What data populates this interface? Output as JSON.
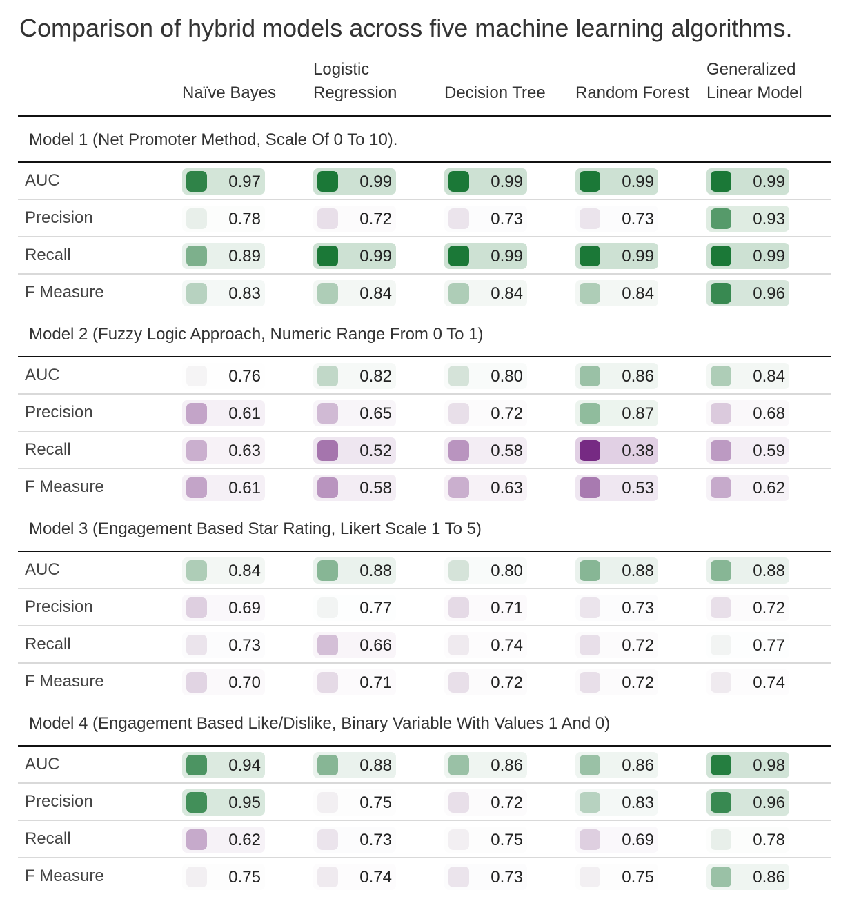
{
  "chart_data": {
    "type": "table",
    "title": "Comparison of hybrid models across five machine learning algorithms.",
    "columns": [
      {
        "line1": "",
        "line2": "Naïve Bayes"
      },
      {
        "line1": "Logistic",
        "line2": "Regression"
      },
      {
        "line1": "",
        "line2": "Decision Tree"
      },
      {
        "line1": "",
        "line2": "Random Forest"
      },
      {
        "line1": "Generalized",
        "line2": "Linear Model"
      }
    ],
    "color_scale": {
      "low": "#762a83",
      "mid": "#f7f7f7",
      "high": "#1b7837",
      "center": 0.765,
      "min": 0.38,
      "max": 0.99
    },
    "groups": [
      {
        "title": "Model 1 (Net Promoter Method, Scale Of 0 To 10).",
        "rows": [
          {
            "metric": "AUC",
            "values": [
              "0.97",
              "0.99",
              "0.99",
              "0.99",
              "0.99"
            ]
          },
          {
            "metric": "Precision",
            "values": [
              "0.78",
              "0.72",
              "0.73",
              "0.73",
              "0.93"
            ]
          },
          {
            "metric": "Recall",
            "values": [
              "0.89",
              "0.99",
              "0.99",
              "0.99",
              "0.99"
            ]
          },
          {
            "metric": "F Measure",
            "values": [
              "0.83",
              "0.84",
              "0.84",
              "0.84",
              "0.96"
            ]
          }
        ]
      },
      {
        "title": "Model 2 (Fuzzy Logic Approach, Numeric Range From 0 To 1)",
        "rows": [
          {
            "metric": "AUC",
            "values": [
              "0.76",
              "0.82",
              "0.80",
              "0.86",
              "0.84"
            ]
          },
          {
            "metric": "Precision",
            "values": [
              "0.61",
              "0.65",
              "0.72",
              "0.87",
              "0.68"
            ]
          },
          {
            "metric": "Recall",
            "values": [
              "0.63",
              "0.52",
              "0.58",
              "0.38",
              "0.59"
            ]
          },
          {
            "metric": "F Measure",
            "values": [
              "0.61",
              "0.58",
              "0.63",
              "0.53",
              "0.62"
            ]
          }
        ]
      },
      {
        "title": "Model 3 (Engagement Based Star Rating, Likert Scale 1 To 5)",
        "rows": [
          {
            "metric": "AUC",
            "values": [
              "0.84",
              "0.88",
              "0.80",
              "0.88",
              "0.88"
            ]
          },
          {
            "metric": "Precision",
            "values": [
              "0.69",
              "0.77",
              "0.71",
              "0.73",
              "0.72"
            ]
          },
          {
            "metric": "Recall",
            "values": [
              "0.73",
              "0.66",
              "0.74",
              "0.72",
              "0.77"
            ]
          },
          {
            "metric": "F Measure",
            "values": [
              "0.70",
              "0.71",
              "0.72",
              "0.72",
              "0.74"
            ]
          }
        ]
      },
      {
        "title": "Model 4 (Engagement Based Like/Dislike, Binary Variable With Values 1 And 0)",
        "rows": [
          {
            "metric": "AUC",
            "values": [
              "0.94",
              "0.88",
              "0.86",
              "0.86",
              "0.98"
            ]
          },
          {
            "metric": "Precision",
            "values": [
              "0.95",
              "0.75",
              "0.72",
              "0.83",
              "0.96"
            ]
          },
          {
            "metric": "Recall",
            "values": [
              "0.62",
              "0.73",
              "0.75",
              "0.69",
              "0.78"
            ]
          },
          {
            "metric": "F Measure",
            "values": [
              "0.75",
              "0.74",
              "0.73",
              "0.75",
              "0.86"
            ]
          }
        ]
      }
    ]
  }
}
